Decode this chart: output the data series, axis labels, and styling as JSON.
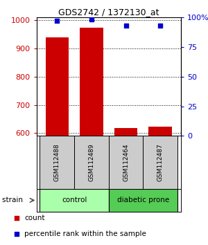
{
  "title": "GDS2742 / 1372130_at",
  "samples": [
    "GSM112488",
    "GSM112489",
    "GSM112464",
    "GSM112487"
  ],
  "counts": [
    938,
    972,
    617,
    622
  ],
  "percentiles": [
    97,
    98,
    93,
    93
  ],
  "groups": [
    {
      "label": "control",
      "samples": [
        0,
        1
      ],
      "color": "#aaffaa"
    },
    {
      "label": "diabetic prone",
      "samples": [
        2,
        3
      ],
      "color": "#55cc55"
    }
  ],
  "strain_label": "strain",
  "ylim_left": [
    590,
    1010
  ],
  "ylim_right": [
    0,
    100
  ],
  "yticks_left": [
    600,
    700,
    800,
    900,
    1000
  ],
  "yticks_right": [
    0,
    25,
    50,
    75,
    100
  ],
  "ytick_right_labels": [
    "0",
    "25",
    "50",
    "75",
    "100%"
  ],
  "bar_color": "#cc0000",
  "scatter_color": "#0000cc",
  "bar_width": 0.45,
  "legend_count_color": "#cc0000",
  "legend_pct_color": "#0000cc",
  "left_tick_color": "#cc0000",
  "right_tick_color": "#0000cc",
  "grid_color": "#000000",
  "background_plot": "#ffffff",
  "background_label": "#cccccc"
}
